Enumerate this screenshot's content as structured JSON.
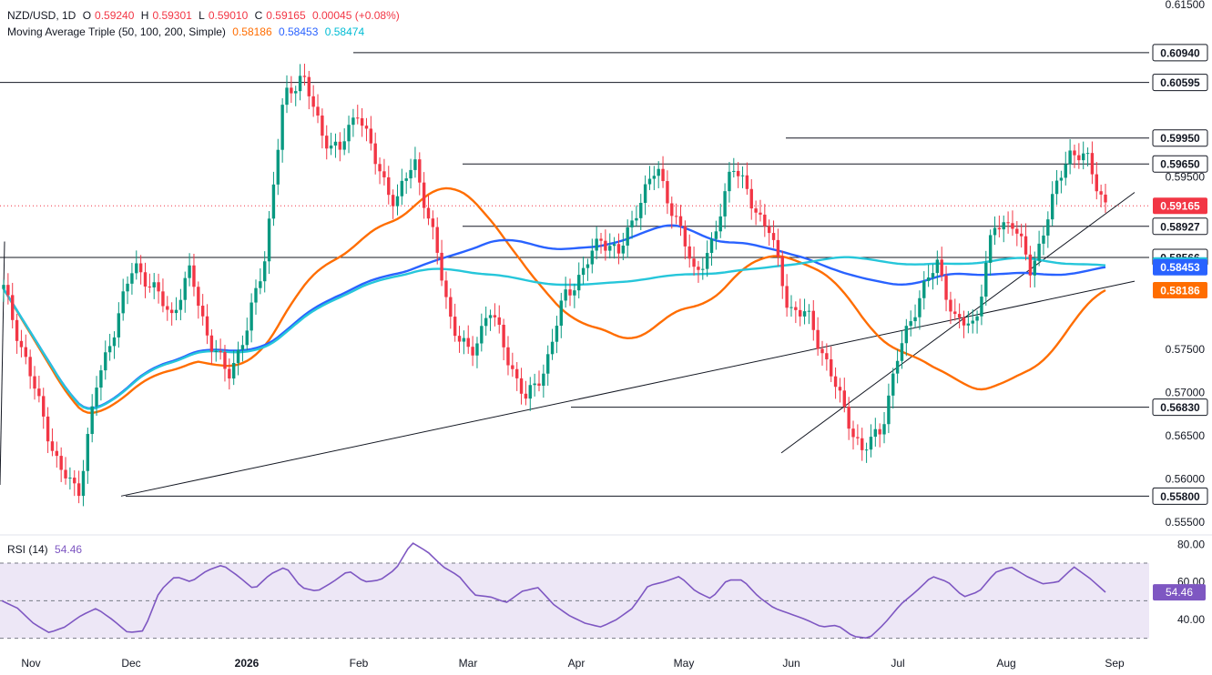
{
  "legend": {
    "symbol_line": "NZD/USD, 1D",
    "o_label": "O",
    "o": "0.59240",
    "h_label": "H",
    "h": "0.59301",
    "l_label": "L",
    "l": "0.59010",
    "c_label": "C",
    "c": "0.59165",
    "change": "0.00045 (+0.08%)",
    "ma_title": "Moving Average Triple (50, 100, 200, Simple)",
    "ma50": "0.58186",
    "ma100": "0.58453",
    "ma200": "0.58474",
    "rsi_title": "RSI (14)",
    "rsi_value": "54.46"
  },
  "colors": {
    "up": "#089981",
    "down": "#f23645",
    "ma50": "#ff6d00",
    "ma100": "#2962ff",
    "ma200": "#26c6da",
    "rsi": "#7e57c2",
    "rsi_band": "#ede7f6",
    "label_box": "#ffffff",
    "label_border": "#131722"
  },
  "chart_data": {
    "type": "candlestick",
    "symbol": "NZD/USD",
    "timeframe": "1D",
    "price_axis": {
      "ticks": [
        "0.61500",
        "0.60595",
        "0.59500",
        "0.57500",
        "0.57000",
        "0.56500",
        "0.56000",
        "0.55500"
      ],
      "range": [
        0.5535,
        0.6155
      ]
    },
    "time_axis": {
      "labels": [
        "Nov",
        "Dec",
        "2026",
        "Feb",
        "Mar",
        "Apr",
        "May",
        "Jun",
        "Jul",
        "Aug",
        "Sep"
      ]
    },
    "price_labels": [
      {
        "value": 0.6094,
        "text": "0.60940",
        "style": "level"
      },
      {
        "value": 0.60595,
        "text": "0.60595",
        "style": "level"
      },
      {
        "value": 0.5995,
        "text": "0.59950",
        "style": "level"
      },
      {
        "value": 0.5965,
        "text": "0.59650",
        "style": "level"
      },
      {
        "value": 0.59165,
        "text": "0.59165",
        "style": "last"
      },
      {
        "value": 0.58927,
        "text": "0.58927",
        "style": "level"
      },
      {
        "value": 0.58566,
        "text": "0.58566",
        "style": "level"
      },
      {
        "value": 0.58474,
        "text": "0.58474",
        "style": "ma200"
      },
      {
        "value": 0.58453,
        "text": "0.58453",
        "style": "ma100"
      },
      {
        "value": 0.58186,
        "text": "0.58186",
        "style": "ma50"
      },
      {
        "value": 0.5683,
        "text": "0.56830",
        "style": "level"
      },
      {
        "value": 0.558,
        "text": "0.55800",
        "style": "level"
      }
    ],
    "horizontal_levels": [
      {
        "value": 0.6094,
        "from": "Feb"
      },
      {
        "value": 0.60595,
        "from": "Nov"
      },
      {
        "value": 0.5995,
        "from": "Jun"
      },
      {
        "value": 0.5965,
        "from": "Mar"
      },
      {
        "value": 0.58927,
        "from": "Mar"
      },
      {
        "value": 0.58566,
        "from": "Nov"
      },
      {
        "value": 0.5683,
        "from": "Apr"
      },
      {
        "value": 0.558,
        "from": "Dec"
      }
    ],
    "trendlines": [
      {
        "from": [
          "Nov",
          0.5875
        ],
        "to": [
          "Jan",
          0.5593
        ]
      },
      {
        "from": [
          "Dec",
          0.558
        ],
        "to": [
          "Sep",
          0.5829
        ]
      },
      {
        "from": [
          "Jun",
          0.563
        ],
        "to": [
          "Sep",
          0.5932
        ]
      }
    ],
    "series": [
      {
        "name": "NZD/USD",
        "close_path": [
          0.582,
          0.575,
          0.568,
          0.561,
          0.5585,
          0.571,
          0.578,
          0.585,
          0.582,
          0.579,
          0.584,
          0.576,
          0.572,
          0.577,
          0.586,
          0.604,
          0.607,
          0.6,
          0.598,
          0.603,
          0.596,
          0.592,
          0.597,
          0.588,
          0.578,
          0.574,
          0.58,
          0.574,
          0.569,
          0.573,
          0.581,
          0.584,
          0.588,
          0.586,
          0.592,
          0.596,
          0.59,
          0.584,
          0.587,
          0.597,
          0.592,
          0.589,
          0.58,
          0.579,
          0.574,
          0.568,
          0.563,
          0.566,
          0.575,
          0.581,
          0.585,
          0.578,
          0.578,
          0.589,
          0.59,
          0.584,
          0.591,
          0.598,
          0.597,
          0.5918
        ]
      },
      {
        "name": "MA 50",
        "value": 0.58186
      },
      {
        "name": "MA 100",
        "value": 0.58453
      },
      {
        "name": "MA 200",
        "value": 0.58474
      }
    ],
    "rsi": {
      "period": 14,
      "last": 54.46,
      "ticks": [
        "80.00",
        "60.00",
        "40.00"
      ],
      "band": [
        30,
        70
      ],
      "range": [
        25,
        85
      ],
      "path": [
        50,
        46,
        38,
        33,
        36,
        42,
        46,
        40,
        33,
        34,
        55,
        63,
        60,
        66,
        69,
        63,
        56,
        64,
        68,
        57,
        55,
        60,
        66,
        60,
        61,
        67,
        81,
        76,
        68,
        63,
        53,
        52,
        49,
        55,
        57,
        48,
        42,
        38,
        36,
        40,
        46,
        58,
        60,
        63,
        55,
        51,
        61,
        61,
        52,
        46,
        43,
        40,
        36,
        37,
        31,
        30,
        38,
        48,
        55,
        63,
        60,
        52,
        55,
        65,
        68,
        63,
        59,
        60,
        68,
        62,
        54.5
      ]
    }
  }
}
